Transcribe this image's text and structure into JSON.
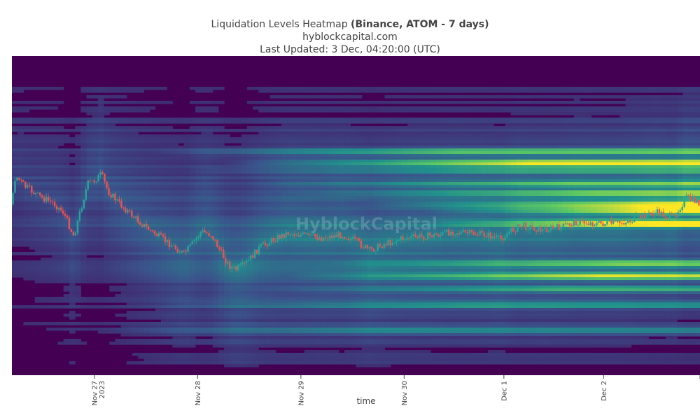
{
  "header": {
    "title_plain": "Liquidation Levels Heatmap ",
    "title_bold": "(Binance, ATOM - 7 days)",
    "site": "hyblockcapital.com",
    "last_updated": "Last Updated: 3 Dec, 04:20:00 (UTC)"
  },
  "watermark": "HyblockCapital",
  "colors": {
    "heat_low": "#440154",
    "heat_mid": "#21918c",
    "heat_high": "#fde725",
    "candle_up": "#26a69a",
    "candle_down": "#ef5350"
  },
  "chart_data": {
    "type": "heatmap",
    "xlabel": "time",
    "x_ticks": [
      {
        "label": "Nov 27",
        "sub": "2023",
        "t": 0.12
      },
      {
        "label": "Nov 28",
        "sub": "",
        "t": 0.27
      },
      {
        "label": "Nov 29",
        "sub": "",
        "t": 0.42
      },
      {
        "label": "Nov 30",
        "sub": "",
        "t": 0.57
      },
      {
        "label": "Dec 1",
        "sub": "",
        "t": 0.715
      },
      {
        "label": "Dec 2",
        "sub": "",
        "t": 0.86
      },
      {
        "label": "",
        "sub": "",
        "t": 1.0
      }
    ],
    "price_path": [
      [
        0.0,
        0.465
      ],
      [
        0.005,
        0.375
      ],
      [
        0.02,
        0.41
      ],
      [
        0.04,
        0.44
      ],
      [
        0.06,
        0.46
      ],
      [
        0.075,
        0.49
      ],
      [
        0.09,
        0.565
      ],
      [
        0.1,
        0.48
      ],
      [
        0.11,
        0.4
      ],
      [
        0.12,
        0.39
      ],
      [
        0.13,
        0.37
      ],
      [
        0.14,
        0.425
      ],
      [
        0.16,
        0.47
      ],
      [
        0.18,
        0.51
      ],
      [
        0.2,
        0.545
      ],
      [
        0.22,
        0.575
      ],
      [
        0.24,
        0.605
      ],
      [
        0.25,
        0.62
      ],
      [
        0.26,
        0.595
      ],
      [
        0.275,
        0.55
      ],
      [
        0.29,
        0.56
      ],
      [
        0.305,
        0.62
      ],
      [
        0.315,
        0.655
      ],
      [
        0.325,
        0.67
      ],
      [
        0.34,
        0.65
      ],
      [
        0.36,
        0.6
      ],
      [
        0.38,
        0.575
      ],
      [
        0.4,
        0.555
      ],
      [
        0.42,
        0.56
      ],
      [
        0.45,
        0.57
      ],
      [
        0.48,
        0.56
      ],
      [
        0.5,
        0.58
      ],
      [
        0.52,
        0.61
      ],
      [
        0.54,
        0.59
      ],
      [
        0.57,
        0.57
      ],
      [
        0.6,
        0.565
      ],
      [
        0.62,
        0.56
      ],
      [
        0.64,
        0.55
      ],
      [
        0.66,
        0.555
      ],
      [
        0.69,
        0.56
      ],
      [
        0.71,
        0.575
      ],
      [
        0.72,
        0.555
      ],
      [
        0.74,
        0.53
      ],
      [
        0.77,
        0.545
      ],
      [
        0.8,
        0.535
      ],
      [
        0.82,
        0.52
      ],
      [
        0.85,
        0.525
      ],
      [
        0.88,
        0.525
      ],
      [
        0.9,
        0.515
      ],
      [
        0.92,
        0.5
      ],
      [
        0.94,
        0.49
      ],
      [
        0.96,
        0.51
      ],
      [
        0.98,
        0.445
      ],
      [
        1.0,
        0.46
      ]
    ],
    "bands": [
      {
        "y": 0.3,
        "i": 0.55,
        "start": 0.2
      },
      {
        "y": 0.335,
        "i": 0.85,
        "start": 0.3
      },
      {
        "y": 0.36,
        "i": 0.4,
        "start": 0.25
      },
      {
        "y": 0.4,
        "i": 0.45,
        "start": 0.35
      },
      {
        "y": 0.43,
        "i": 0.55,
        "start": 0.4
      },
      {
        "y": 0.465,
        "i": 0.75,
        "start": 0.5
      },
      {
        "y": 0.485,
        "i": 0.95,
        "start": 0.6
      },
      {
        "y": 0.525,
        "i": 1.0,
        "start": 0.6
      },
      {
        "y": 0.65,
        "i": 0.55,
        "start": 0.45
      },
      {
        "y": 0.69,
        "i": 0.7,
        "start": 0.4
      },
      {
        "y": 0.73,
        "i": 0.45,
        "start": 0.35
      },
      {
        "y": 0.78,
        "i": 0.35,
        "start": 0.2
      },
      {
        "y": 0.86,
        "i": 0.3,
        "start": 0.1
      }
    ]
  }
}
